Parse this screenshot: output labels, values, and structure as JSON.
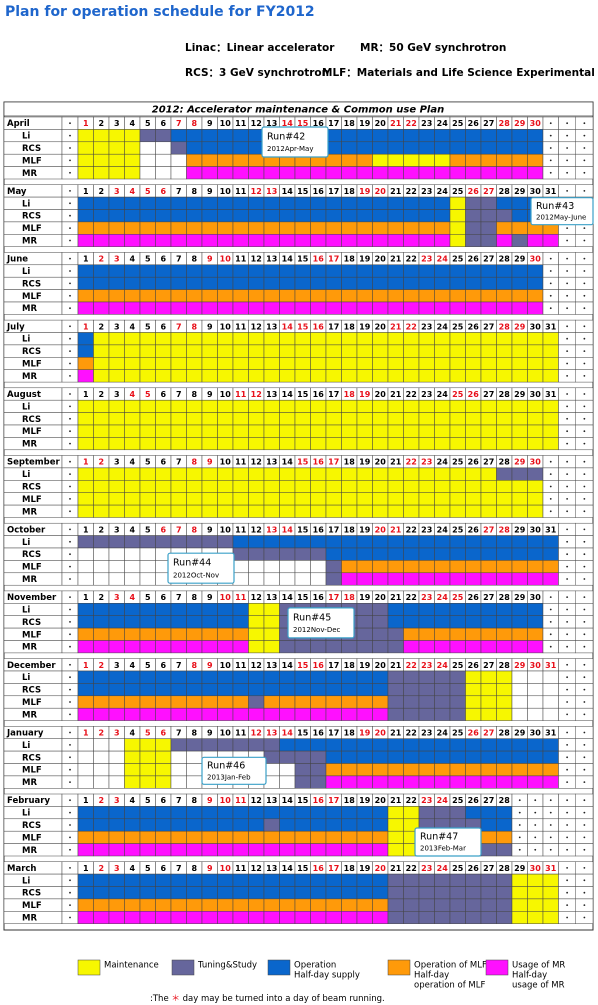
{
  "title": "Plan for operation schedule for FY2012",
  "glossary": [
    "Linac：Linear accelerator",
    "MR：50 GeV synchrotron",
    "RCS：3 GeV synchrotron",
    "MLF：Materials and Life Science Experimental Facility"
  ],
  "table_title": "2012: Accelerator maintenance & Common use Plan",
  "row_labels": [
    "Li",
    "RCS",
    "MLF",
    "MR"
  ],
  "legend": [
    {
      "label": [
        "Maintenance"
      ],
      "color": "#f7f700"
    },
    {
      "label": [
        "Tuning&Study"
      ],
      "color": "#66669c"
    },
    {
      "label": [
        "Operation",
        "Half-day supply"
      ],
      "color": "#0a66cc"
    },
    {
      "label": [
        "Operation of MLF",
        "Half-day",
        "operation of MLF"
      ],
      "color": "#ff9a0a"
    },
    {
      "label": [
        "Usage of MR",
        "Half-day",
        "usage of MR"
      ],
      "color": "#ff10ff"
    }
  ],
  "months": [
    {
      "name": "April",
      "days": [
        1,
        2,
        3,
        4,
        5,
        6,
        7,
        8,
        9,
        10,
        11,
        12,
        13,
        14,
        15,
        16,
        17,
        18,
        19,
        20,
        21,
        22,
        23,
        24,
        25,
        26,
        27,
        28,
        29,
        30
      ],
      "red_days": [
        1,
        7,
        8,
        14,
        15,
        21,
        22,
        28,
        29,
        30
      ],
      "rows": [
        "000011222222222222222222222222",
        "0000..122222222222222222222222",
        "0000...33333333333300000333333",
        "0000...44444444444444444444444"
      ],
      "run": {
        "label": "Run#42",
        "period": "2012Apr-May"
      }
    },
    {
      "name": "May",
      "days": [
        1,
        2,
        3,
        4,
        5,
        6,
        7,
        8,
        9,
        10,
        11,
        12,
        13,
        14,
        15,
        16,
        17,
        18,
        19,
        20,
        21,
        22,
        23,
        24,
        25,
        26,
        27,
        28,
        29,
        30,
        31
      ],
      "red_days": [
        3,
        4,
        5,
        6,
        12,
        13,
        19,
        20,
        26,
        27
      ],
      "rows": [
        "2222222222222222222222220112222",
        "2222222222222222222222220111222",
        "3333333333333333333333330113333",
        "4444444444444444444444440114144"
      ],
      "run": {
        "label": "Run#43",
        "period": "2012May-June"
      }
    },
    {
      "name": "June",
      "days": [
        1,
        2,
        3,
        4,
        5,
        6,
        7,
        8,
        9,
        10,
        11,
        12,
        13,
        14,
        15,
        16,
        17,
        18,
        19,
        20,
        21,
        22,
        23,
        24,
        25,
        26,
        27,
        28,
        29,
        30
      ],
      "red_days": [
        2,
        3,
        9,
        10,
        16,
        17,
        23,
        24,
        30
      ],
      "rows": [
        "222222222222222222222222222222",
        "222222222222222222222222222222",
        "333333333333333333333333333333",
        "444444444444444444444444444444"
      ]
    },
    {
      "name": "July",
      "days": [
        1,
        2,
        3,
        4,
        5,
        6,
        7,
        8,
        9,
        10,
        11,
        12,
        13,
        14,
        15,
        16,
        17,
        18,
        19,
        20,
        21,
        22,
        23,
        24,
        25,
        26,
        27,
        28,
        29,
        30,
        31
      ],
      "red_days": [
        1,
        7,
        8,
        14,
        15,
        16,
        21,
        22,
        28,
        29
      ],
      "rows": [
        "2000000000000000000000000000000",
        "2000000000000000000000000000000",
        "3000000000000000000000000000000",
        "4000000000000000000000000000000"
      ]
    },
    {
      "name": "August",
      "days": [
        1,
        2,
        3,
        4,
        5,
        6,
        7,
        8,
        9,
        10,
        11,
        12,
        13,
        14,
        15,
        16,
        17,
        18,
        19,
        20,
        21,
        22,
        23,
        24,
        25,
        26,
        27,
        28,
        29,
        30,
        31
      ],
      "red_days": [
        4,
        5,
        11,
        12,
        18,
        19,
        25,
        26
      ],
      "rows": [
        "0000000000000000000000000000000",
        "0000000000000000000000000000000",
        "0000000000000000000000000000000",
        "0000000000000000000000000000000"
      ]
    },
    {
      "name": "September",
      "days": [
        1,
        2,
        3,
        4,
        5,
        6,
        7,
        8,
        9,
        10,
        11,
        12,
        13,
        14,
        15,
        16,
        17,
        18,
        19,
        20,
        21,
        22,
        23,
        24,
        25,
        26,
        27,
        28,
        29,
        30
      ],
      "red_days": [
        1,
        2,
        8,
        9,
        15,
        16,
        17,
        22,
        23,
        29,
        30
      ],
      "rows": [
        "000000000000000000000000000111",
        "000000000000000000000000000000",
        "000000000000000000000000000000",
        "000000000000000000000000000000"
      ]
    },
    {
      "name": "October",
      "days": [
        1,
        2,
        3,
        4,
        5,
        6,
        7,
        8,
        9,
        10,
        11,
        12,
        13,
        14,
        15,
        16,
        17,
        18,
        19,
        20,
        21,
        22,
        23,
        24,
        25,
        26,
        27,
        28,
        29,
        30,
        31
      ],
      "red_days": [
        6,
        7,
        8,
        13,
        14,
        20,
        21,
        27,
        28
      ],
      "rows": [
        "1111111111222222222222222222222",
        "..........111111222222222222222",
        "................133333333333333",
        "................144444444444444"
      ],
      "run": {
        "label": "Run#44",
        "period": "2012Oct-Nov"
      }
    },
    {
      "name": "November",
      "days": [
        1,
        2,
        3,
        4,
        5,
        6,
        7,
        8,
        9,
        10,
        11,
        12,
        13,
        14,
        15,
        16,
        17,
        18,
        19,
        20,
        21,
        22,
        23,
        24,
        25,
        26,
        27,
        28,
        29,
        30
      ],
      "red_days": [
        3,
        4,
        10,
        11,
        17,
        18,
        23,
        24,
        25
      ],
      "rows": [
        "222222222220011111112222222222",
        "222222222220011111112222222222",
        "333333333330011111111333333333",
        "444444444440011111111444444444"
      ],
      "run": {
        "label": "Run#45",
        "period": "2012Nov-Dec"
      }
    },
    {
      "name": "December",
      "days": [
        1,
        2,
        3,
        4,
        5,
        6,
        7,
        8,
        9,
        10,
        11,
        12,
        13,
        14,
        15,
        16,
        17,
        18,
        19,
        20,
        21,
        22,
        23,
        24,
        25,
        26,
        27,
        28,
        29,
        30,
        31
      ],
      "red_days": [
        1,
        2,
        8,
        9,
        15,
        16,
        22,
        23,
        24,
        29,
        30,
        31
      ],
      "rows": [
        "2222222222222222222211111000...",
        "2222222222222222222211111000...",
        "3333333333313333333311111000...",
        "4444444444444444444411111000..."
      ]
    },
    {
      "name": "January",
      "days": [
        1,
        2,
        3,
        4,
        5,
        6,
        7,
        8,
        9,
        10,
        11,
        12,
        13,
        14,
        15,
        16,
        17,
        18,
        19,
        20,
        21,
        22,
        23,
        24,
        25,
        26,
        27,
        28,
        29,
        30,
        31
      ],
      "red_days": [
        1,
        2,
        3,
        5,
        6,
        12,
        13,
        14,
        19,
        20,
        26,
        27
      ],
      "rows": [
        "...0001111111222222222222222222",
        "...000......1111222222222222222",
        "...000........11333333333333333",
        "...000........11444444444444444"
      ],
      "run": {
        "label": "Run#46",
        "period": "2013Jan-Feb"
      }
    },
    {
      "name": "February",
      "days": [
        1,
        2,
        3,
        4,
        5,
        6,
        7,
        8,
        9,
        10,
        11,
        12,
        13,
        14,
        15,
        16,
        17,
        18,
        19,
        20,
        21,
        22,
        23,
        24,
        25,
        26,
        27,
        28
      ],
      "red_days": [
        2,
        3,
        9,
        10,
        11,
        16,
        17,
        23,
        24
      ],
      "rows": [
        "2222222222222222222200111222",
        "2222222222221222222200111122",
        "3333333333333333333300111133",
        "4444444444444444444400111111"
      ],
      "run": {
        "label": "Run#47",
        "period": "2013Feb-Mar"
      }
    },
    {
      "name": "March",
      "days": [
        1,
        2,
        3,
        4,
        5,
        6,
        7,
        8,
        9,
        10,
        11,
        12,
        13,
        14,
        15,
        16,
        17,
        18,
        19,
        20,
        21,
        22,
        23,
        24,
        25,
        26,
        27,
        28,
        29,
        30,
        31
      ],
      "red_days": [
        2,
        3,
        9,
        10,
        16,
        17,
        20,
        23,
        24,
        30,
        31
      ],
      "rows": [
        "2222222222222222222211111111000",
        "2222222222222222222211111111000",
        "3333333333333333333311111111000",
        "4444444444444444444411111111000"
      ]
    }
  ],
  "footnote": [
    ":The",
    "＊",
    "day may be turned into a day of beam running."
  ]
}
